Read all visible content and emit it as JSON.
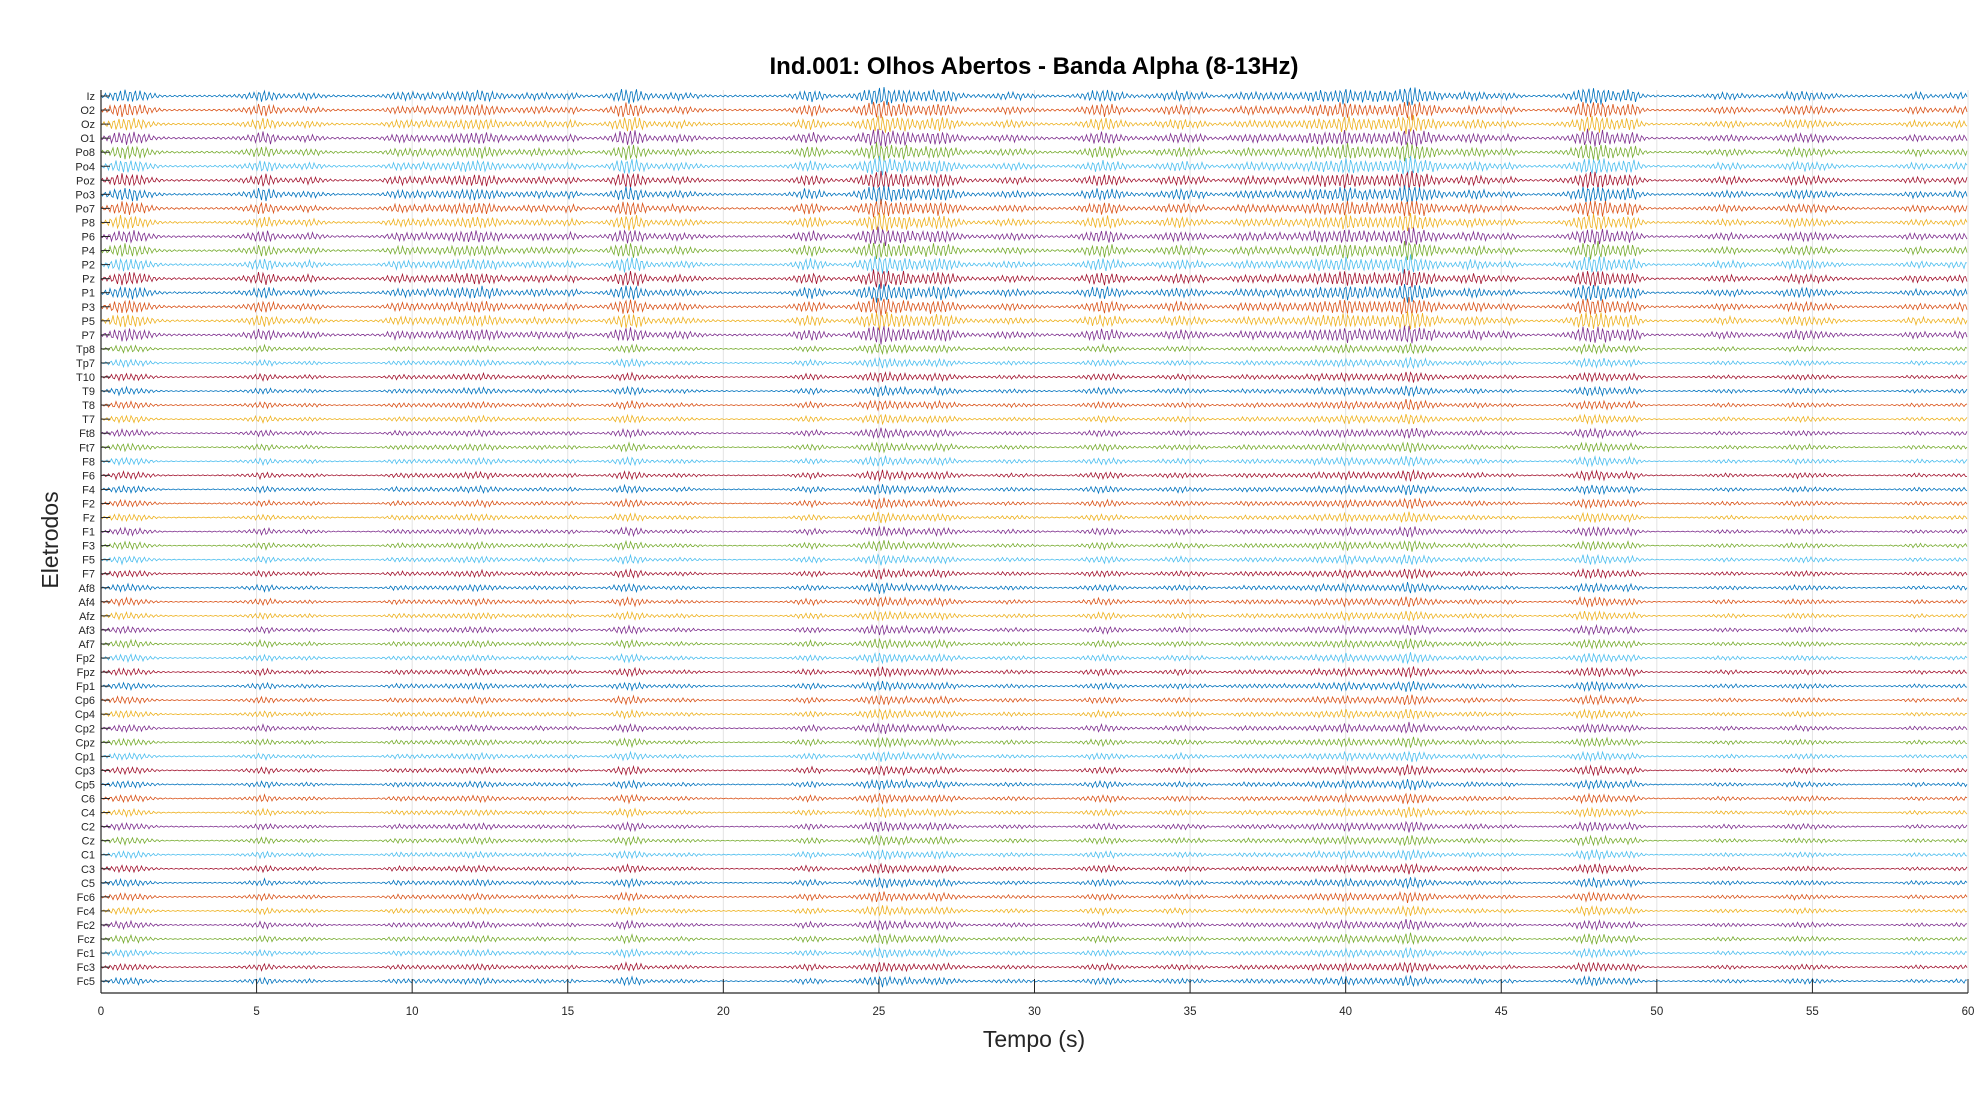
{
  "chart_data": {
    "type": "line",
    "title": "Ind.001: Olhos Abertos - Banda Alpha (8-13Hz)",
    "xlabel": "Tempo (s)",
    "ylabel": "Eletrodos",
    "xlim": [
      0,
      60
    ],
    "xticks": [
      "0",
      "5",
      "10",
      "15",
      "20",
      "25",
      "30",
      "35",
      "40",
      "45",
      "50",
      "55",
      "60"
    ],
    "grid": true,
    "channels": [
      "Iz",
      "O2",
      "Oz",
      "O1",
      "Po8",
      "Po4",
      "Poz",
      "Po3",
      "Po7",
      "P8",
      "P6",
      "P4",
      "P2",
      "Pz",
      "P1",
      "P3",
      "P5",
      "P7",
      "Tp8",
      "Tp7",
      "T10",
      "T9",
      "T8",
      "T7",
      "Ft8",
      "Ft7",
      "F8",
      "F6",
      "F4",
      "F2",
      "Fz",
      "F1",
      "F3",
      "F5",
      "F7",
      "Af8",
      "Af4",
      "Afz",
      "Af3",
      "Af7",
      "Fp2",
      "Fpz",
      "Fp1",
      "Cp6",
      "Cp4",
      "Cp2",
      "Cpz",
      "Cp1",
      "Cp3",
      "Cp5",
      "C6",
      "C4",
      "C2",
      "Cz",
      "C1",
      "C3",
      "C5",
      "Fc6",
      "Fc4",
      "Fc2",
      "Fcz",
      "Fc1",
      "Fc3",
      "Fc5"
    ],
    "colors": [
      "#0072BD",
      "#D95319",
      "#EDB120",
      "#7E2F8E",
      "#77AC30",
      "#4DBEEE",
      "#A2142F"
    ]
  }
}
